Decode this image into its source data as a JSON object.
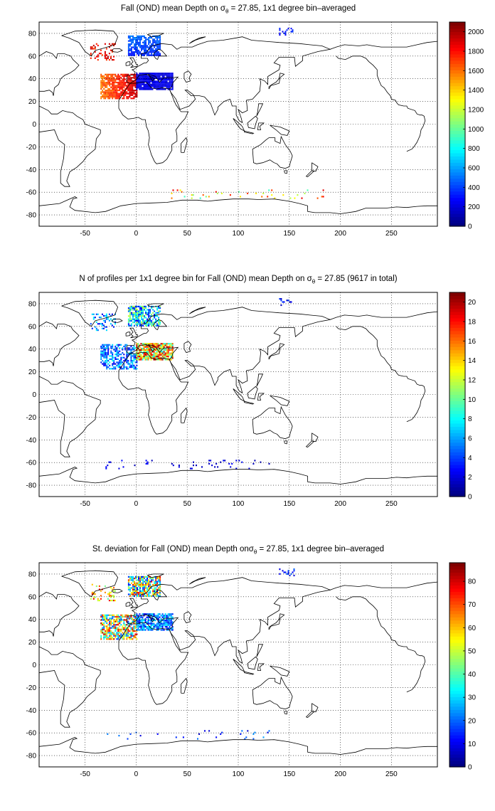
{
  "panels": [
    {
      "title_prefix": "Fall (OND) mean Depth on σ",
      "title_sub": "θ",
      "title_suffix": " = 27.85, 1x1 degree bin–averaged",
      "colorbar_ticks": [
        "0",
        "200",
        "400",
        "600",
        "800",
        "1000",
        "1200",
        "1400",
        "1600",
        "1800",
        "2000"
      ],
      "colorbar_range": [
        0,
        2100
      ]
    },
    {
      "title_prefix": "N of profiles per 1x1 degree bin for Fall (OND) mean Depth on σ",
      "title_sub": "θ",
      "title_suffix": " = 27.85 (9617 in total)",
      "colorbar_ticks": [
        "0",
        "2",
        "4",
        "6",
        "8",
        "10",
        "12",
        "14",
        "16",
        "18",
        "20"
      ],
      "colorbar_range": [
        0,
        21
      ]
    },
    {
      "title_prefix": "St. deviation for Fall (OND) mean Depth on",
      "title_sub": "θ",
      "title_suffix": " = 27.85, 1x1 degree bin–averaged",
      "title_sigma": "σ",
      "colorbar_ticks": [
        "0",
        "10",
        "20",
        "30",
        "40",
        "50",
        "60",
        "70",
        "80"
      ],
      "colorbar_range": [
        0,
        88
      ]
    }
  ],
  "map_axes": {
    "x_ticks": [
      "-50",
      "0",
      "50",
      "100",
      "150",
      "200",
      "250"
    ],
    "y_ticks": [
      "80",
      "60",
      "40",
      "20",
      "0",
      "-20",
      "-40",
      "-60",
      "-80"
    ],
    "xlim": [
      -95,
      295
    ],
    "ylim": [
      -90,
      90
    ],
    "grid": "dotted",
    "colormap": "jet"
  }
}
